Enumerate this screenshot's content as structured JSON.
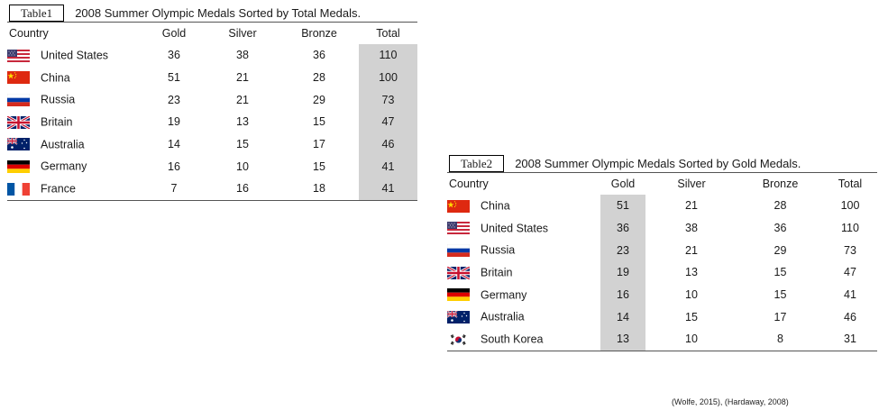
{
  "table1": {
    "tag": "Table1",
    "caption": "2008 Summer Olympic Medals Sorted by Total Medals.",
    "headers": [
      "Country",
      "Gold",
      "Silver",
      "Bronze",
      "Total"
    ],
    "rows": [
      {
        "country": "United States",
        "flag": "usa-flag-icon",
        "gold": "36",
        "silver": "38",
        "bronze": "36",
        "total": "110"
      },
      {
        "country": "China",
        "flag": "china-flag-icon",
        "gold": "51",
        "silver": "21",
        "bronze": "28",
        "total": "100"
      },
      {
        "country": "Russia",
        "flag": "russia-flag-icon",
        "gold": "23",
        "silver": "21",
        "bronze": "29",
        "total": "73"
      },
      {
        "country": "Britain",
        "flag": "uk-flag-icon",
        "gold": "19",
        "silver": "13",
        "bronze": "15",
        "total": "47"
      },
      {
        "country": "Australia",
        "flag": "australia-flag-icon",
        "gold": "14",
        "silver": "15",
        "bronze": "17",
        "total": "46"
      },
      {
        "country": "Germany",
        "flag": "germany-flag-icon",
        "gold": "16",
        "silver": "10",
        "bronze": "15",
        "total": "41"
      },
      {
        "country": "France",
        "flag": "france-flag-icon",
        "gold": "7",
        "silver": "16",
        "bronze": "18",
        "total": "41"
      }
    ],
    "highlighted_column": "Total"
  },
  "table2": {
    "tag": "Table2",
    "caption": "2008 Summer Olympic Medals Sorted by Gold Medals.",
    "headers": [
      "Country",
      "Gold",
      "Silver",
      "Bronze",
      "Total"
    ],
    "rows": [
      {
        "country": "China",
        "flag": "china-flag-icon",
        "gold": "51",
        "silver": "21",
        "bronze": "28",
        "total": "100"
      },
      {
        "country": "United States",
        "flag": "usa-flag-icon",
        "gold": "36",
        "silver": "38",
        "bronze": "36",
        "total": "110"
      },
      {
        "country": "Russia",
        "flag": "russia-flag-icon",
        "gold": "23",
        "silver": "21",
        "bronze": "29",
        "total": "73"
      },
      {
        "country": "Britain",
        "flag": "uk-flag-icon",
        "gold": "19",
        "silver": "13",
        "bronze": "15",
        "total": "47"
      },
      {
        "country": "Germany",
        "flag": "germany-flag-icon",
        "gold": "16",
        "silver": "10",
        "bronze": "15",
        "total": "41"
      },
      {
        "country": "Australia",
        "flag": "australia-flag-icon",
        "gold": "14",
        "silver": "15",
        "bronze": "17",
        "total": "46"
      },
      {
        "country": "South Korea",
        "flag": "south-korea-flag-icon",
        "gold": "13",
        "silver": "10",
        "bronze": "8",
        "total": "31"
      }
    ],
    "highlighted_column": "Gold"
  },
  "citation": "(Wolfe, 2015), (Hardaway, 2008)",
  "colors": {
    "highlight": "#d2d2d2",
    "rule": "#555555"
  }
}
